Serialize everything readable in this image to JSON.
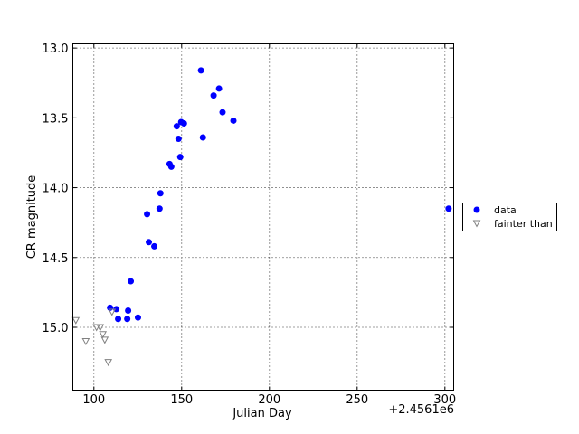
{
  "chart_data": {
    "type": "scatter",
    "x_label": "Julian Day",
    "y_label": "CR magnitude",
    "x_offset_label": "+2.4561e6",
    "xlim": [
      88,
      305
    ],
    "xticks": [
      100,
      150,
      200,
      250,
      300
    ],
    "ylim": [
      12.97,
      15.45
    ],
    "y_inverted": true,
    "yticks": [
      {
        "value": 13.0,
        "label": "13.0"
      },
      {
        "value": 13.5,
        "label": "13.5"
      },
      {
        "value": 14.0,
        "label": "14.0"
      },
      {
        "value": 14.5,
        "label": "14.5"
      },
      {
        "value": 15.0,
        "label": "15.0"
      }
    ],
    "grid": true,
    "legend": "right",
    "series": [
      {
        "name": "data",
        "color": "#0000ff",
        "marker": "circle",
        "x": [
          109.2,
          112.8,
          113.8,
          119.5,
          119.0,
          125.1,
          121.0,
          130.3,
          131.3,
          134.4,
          137.4,
          137.9,
          143.1,
          144.1,
          147.2,
          148.2,
          149.2,
          149.7,
          151.3,
          161.0,
          162.1,
          168.2,
          171.3,
          173.3,
          179.5,
          302.1
        ],
        "values": [
          14.86,
          14.87,
          14.94,
          14.88,
          14.94,
          14.93,
          14.67,
          14.19,
          14.39,
          14.42,
          14.15,
          14.04,
          13.83,
          13.85,
          13.56,
          13.65,
          13.78,
          13.53,
          13.54,
          13.16,
          13.64,
          13.34,
          13.29,
          13.46,
          13.52,
          14.15
        ]
      },
      {
        "name": "fainter than",
        "color": "#808080",
        "marker": "triangle_down",
        "x": [
          89.7,
          95.4,
          101.5,
          103.6,
          105.1,
          106.2,
          108.2,
          110.3
        ],
        "values": [
          14.95,
          15.1,
          15.0,
          15.0,
          15.05,
          15.09,
          15.25,
          14.89
        ]
      }
    ]
  }
}
